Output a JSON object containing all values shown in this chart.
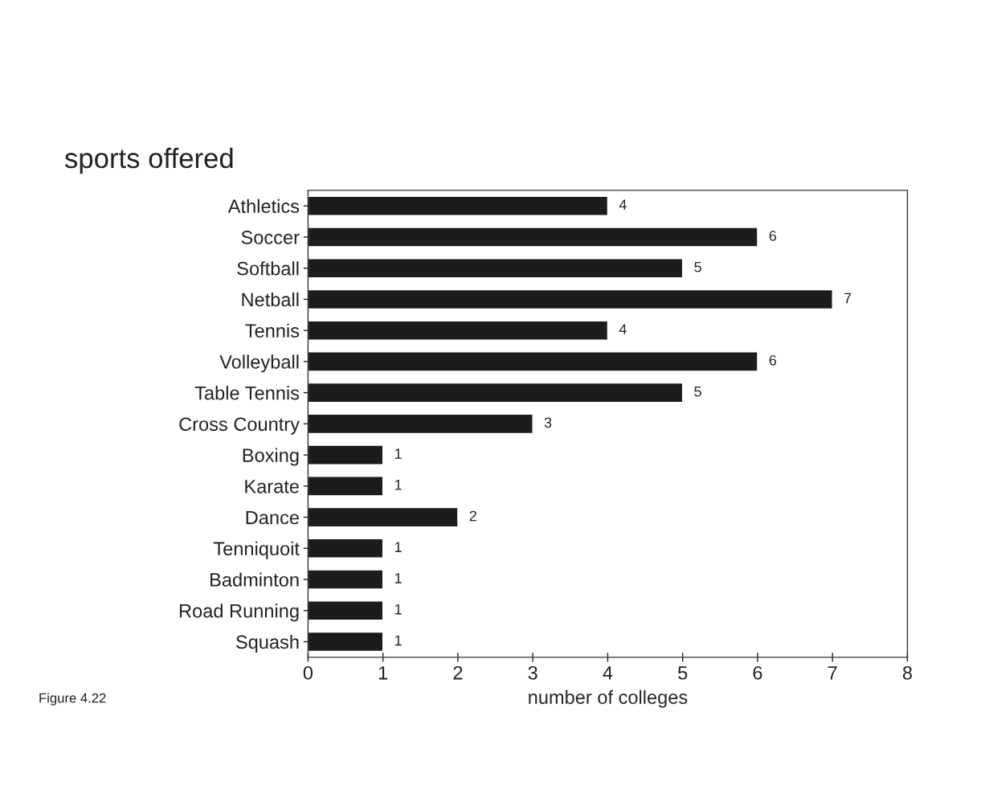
{
  "chart_data": {
    "type": "bar",
    "orientation": "horizontal",
    "title": "sports offered",
    "xlabel": "number of colleges",
    "categories": [
      "Athletics",
      "Soccer",
      "Softball",
      "Netball",
      "Tennis",
      "Volleyball",
      "Table Tennis",
      "Cross Country",
      "Boxing",
      "Karate",
      "Dance",
      "Tenniquoit",
      "Badminton",
      "Road Running",
      "Squash"
    ],
    "values": [
      4,
      6,
      5,
      7,
      4,
      6,
      5,
      3,
      1,
      1,
      2,
      1,
      1,
      1,
      1
    ],
    "color": "#1c1c1c",
    "xlim": [
      0,
      8
    ],
    "xticks": [
      0,
      1,
      2,
      3,
      4,
      5,
      6,
      7,
      8
    ],
    "grid": false,
    "data_labels": true,
    "annotations": [
      "Figure 4.22"
    ]
  }
}
